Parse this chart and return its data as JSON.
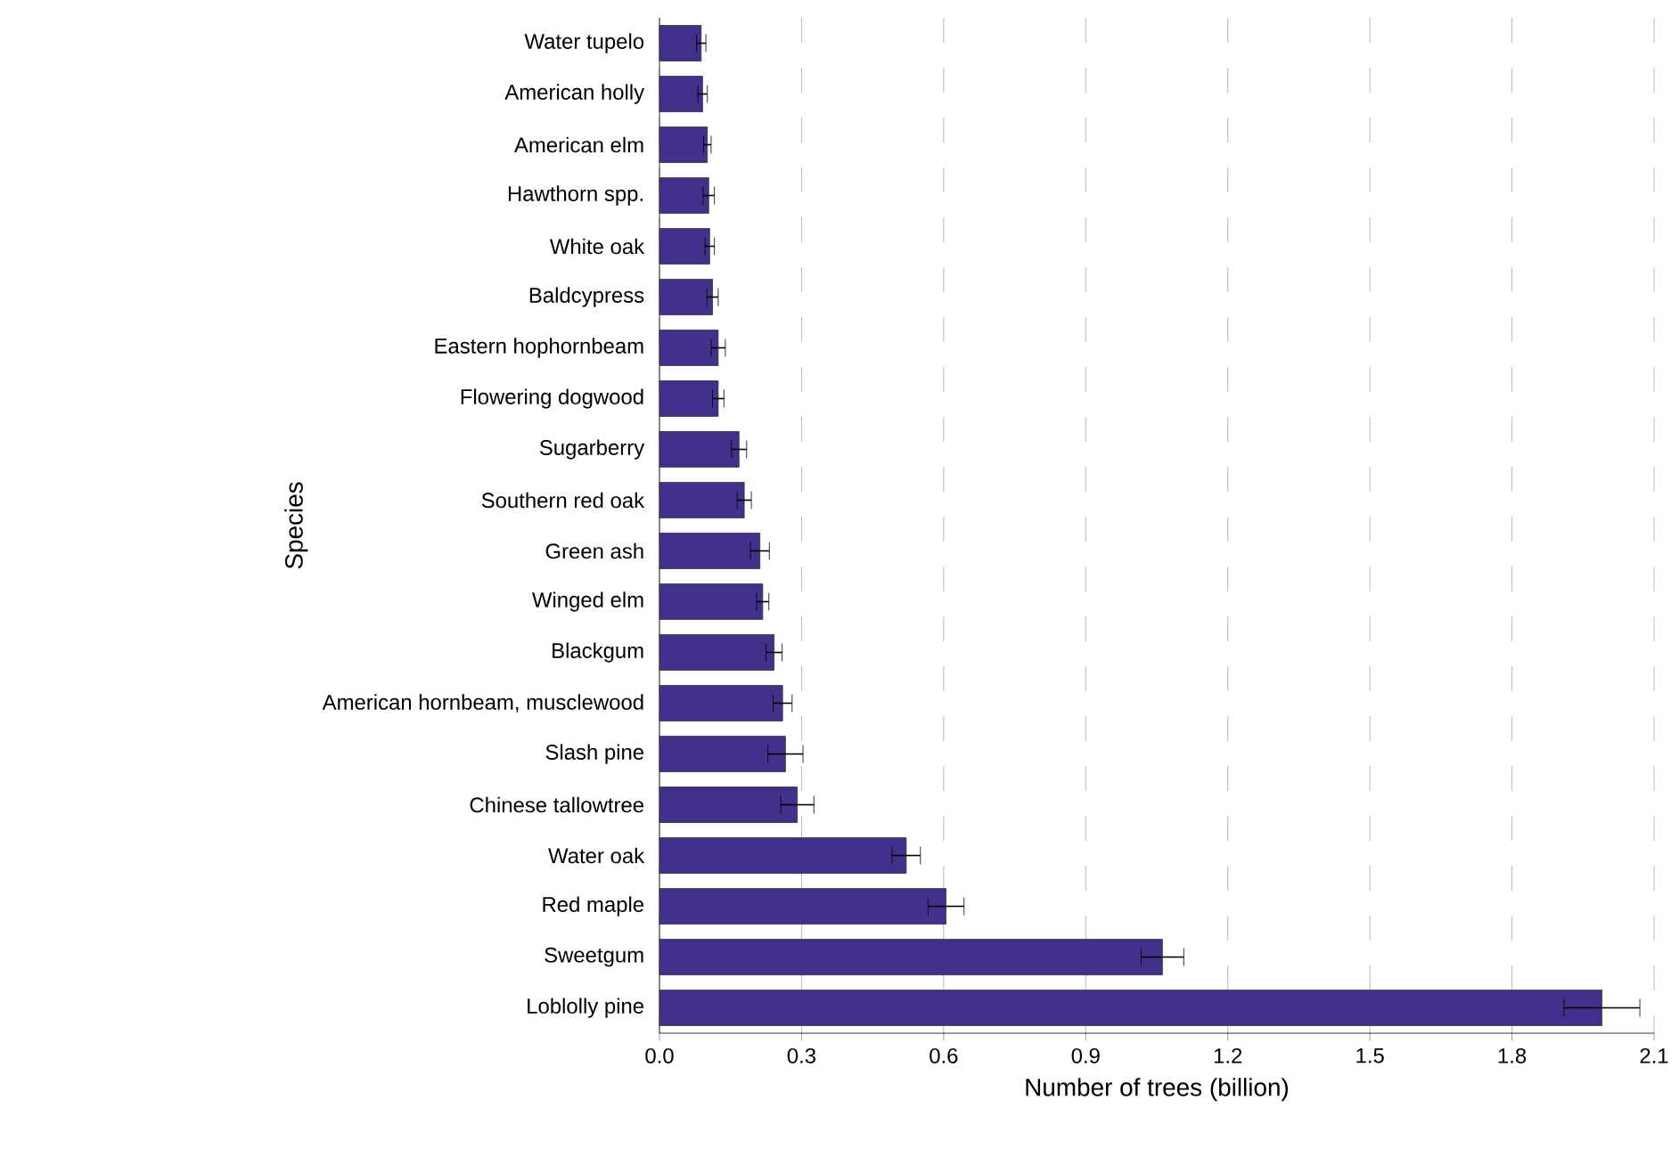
{
  "chart_data": {
    "type": "bar",
    "orientation": "horizontal",
    "xlabel": "Number of trees (billion)",
    "ylabel": "Species",
    "categories": [
      "Water tupelo",
      "American holly",
      "American elm",
      "Hawthorn spp.",
      "White oak",
      "Baldcypress",
      "Eastern hophornbeam",
      "Flowering dogwood",
      "Sugarberry",
      "Southern red oak",
      "Green ash",
      "Winged elm",
      "Blackgum",
      "American hornbeam, musclewood",
      "Slash pine",
      "Chinese tallowtree",
      "Water oak",
      "Red maple",
      "Sweetgum",
      "Loblolly pine"
    ],
    "values": [
      0.088,
      0.091,
      0.101,
      0.104,
      0.106,
      0.112,
      0.124,
      0.124,
      0.168,
      0.179,
      0.212,
      0.218,
      0.242,
      0.26,
      0.266,
      0.291,
      0.521,
      0.605,
      1.062,
      1.99
    ],
    "errors": [
      0.01,
      0.01,
      0.008,
      0.012,
      0.01,
      0.012,
      0.015,
      0.012,
      0.016,
      0.015,
      0.02,
      0.013,
      0.017,
      0.02,
      0.037,
      0.035,
      0.03,
      0.038,
      0.045,
      0.08
    ],
    "color": "#43308a",
    "xlim": [
      0,
      2.1
    ],
    "xticks": [
      {
        "value": 0,
        "label": "0.0"
      },
      0.3,
      0.6,
      0.9,
      1.2,
      1.5,
      1.8,
      2.1
    ],
    "grid": "x"
  }
}
